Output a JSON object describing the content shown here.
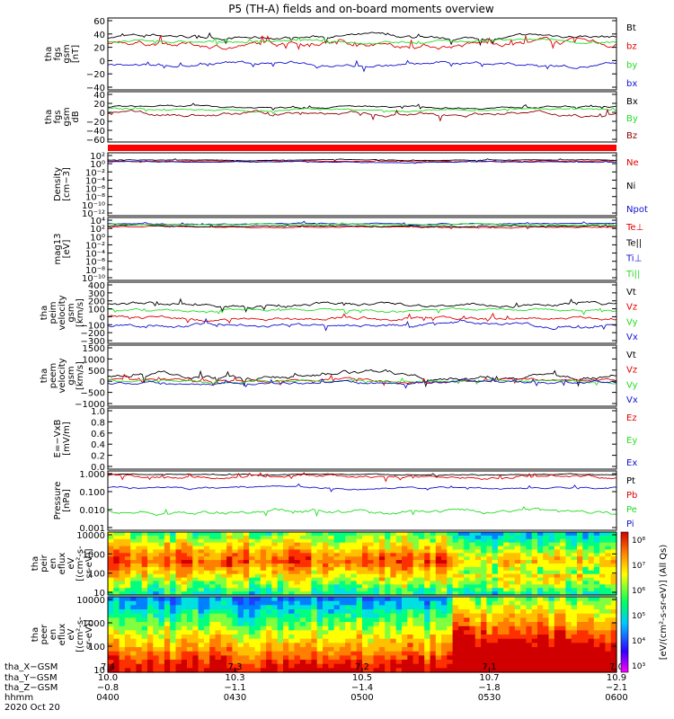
{
  "title": "P5 (TH-A) fields and on-board moments overview",
  "colors": {
    "black": "#000000",
    "red": "#e00000",
    "green": "#22dd22",
    "blue": "#1010d0",
    "darkred": "#900000",
    "redbar": "#ff0000"
  },
  "chart_data": [
    {
      "type": "line",
      "ylabel": [
        "tha",
        "fgs",
        "gsm",
        "[nT]"
      ],
      "yticks": [
        "60",
        "40",
        "20",
        "0",
        "−20",
        "−40"
      ],
      "ylim": [
        -40,
        60
      ],
      "series": [
        {
          "name": "Bt",
          "color": "#000000",
          "level": 35,
          "amp": 5
        },
        {
          "name": "bz",
          "color": "#e00000",
          "level": 25,
          "amp": 8
        },
        {
          "name": "by",
          "color": "#22dd22",
          "level": 28,
          "amp": 4
        },
        {
          "name": "bx",
          "color": "#1010d0",
          "level": -5,
          "amp": 5
        }
      ]
    },
    {
      "type": "line",
      "ylabel": [
        "tha",
        "fgs",
        "gsm",
        "dB"
      ],
      "yticks": [
        "40",
        "20",
        "0",
        "−20",
        "−40",
        "−60"
      ],
      "ylim": [
        -70,
        40
      ],
      "series": [
        {
          "name": "Bx",
          "color": "#000000",
          "level": 8,
          "amp": 4
        },
        {
          "name": "By",
          "color": "#22dd22",
          "level": 2,
          "amp": 4
        },
        {
          "name": "Bz",
          "color": "#900000",
          "level": -8,
          "amp": 8
        }
      ]
    },
    {
      "type": "bar",
      "note": "status bar",
      "color": "#ff0000"
    },
    {
      "type": "line",
      "log": true,
      "ylabel": [
        "Density",
        "[cm−3]"
      ],
      "yticks": [
        "10²",
        "10⁰",
        "10⁻²",
        "10⁻⁴",
        "10⁻⁶",
        "10⁻⁸",
        "10⁻¹⁰",
        "10⁻¹²"
      ],
      "ylim": [
        -13,
        3
      ],
      "series": [
        {
          "name": "Ne",
          "color": "#e00000",
          "level": 1.2,
          "amp": 0.2
        },
        {
          "name": "Ni",
          "color": "#000000",
          "level": 1.5,
          "amp": 0.2
        },
        {
          "name": "Npot",
          "color": "#1010d0",
          "level": 1.0,
          "amp": 0.2
        }
      ]
    },
    {
      "type": "line",
      "log": true,
      "ylabel": [
        "mag13",
        "[eV]"
      ],
      "yticks": [
        "10⁴",
        "10²",
        "10⁰",
        "10⁻²",
        "10⁻⁴",
        "10⁻⁶",
        "10⁻⁸",
        "10⁻¹⁰"
      ],
      "ylim": [
        -11,
        4.5
      ],
      "series": [
        {
          "name": "Te⊥",
          "color": "#e00000",
          "level": 2.5,
          "amp": 0.3
        },
        {
          "name": "Te||",
          "color": "#000000",
          "level": 2.7,
          "amp": 0.3
        },
        {
          "name": "Ti⊥",
          "color": "#1010d0",
          "level": 3.3,
          "amp": 0.3
        },
        {
          "name": "Ti||",
          "color": "#22dd22",
          "level": 3.2,
          "amp": 0.3
        }
      ]
    },
    {
      "type": "line",
      "ylabel": [
        "tha",
        "peim",
        "velocity",
        "gsm",
        "[km/s]"
      ],
      "yticks": [
        "400",
        "300",
        "200",
        "100",
        "0",
        "−100",
        "−200",
        "−300"
      ],
      "ylim": [
        -300,
        400
      ],
      "series": [
        {
          "name": "Vt",
          "color": "#000000",
          "level": 150,
          "amp": 40
        },
        {
          "name": "Vz",
          "color": "#e00000",
          "level": -20,
          "amp": 40
        },
        {
          "name": "Vy",
          "color": "#22dd22",
          "level": 80,
          "amp": 30
        },
        {
          "name": "Vx",
          "color": "#1010d0",
          "level": -100,
          "amp": 40
        }
      ]
    },
    {
      "type": "line",
      "ylabel": [
        "tha",
        "peem",
        "velocity",
        "gsm",
        "[km/s]"
      ],
      "yticks": [
        "1500",
        "1000",
        "500",
        "0",
        "−500",
        "−1000"
      ],
      "ylim": [
        -1000,
        1500
      ],
      "series": [
        {
          "name": "Vt",
          "color": "#000000",
          "level": 250,
          "amp": 200
        },
        {
          "name": "Vz",
          "color": "#e00000",
          "level": 50,
          "amp": 120
        },
        {
          "name": "Vy",
          "color": "#22dd22",
          "level": 0,
          "amp": 100
        },
        {
          "name": "Vx",
          "color": "#1010d0",
          "level": -50,
          "amp": 120
        }
      ]
    },
    {
      "type": "line",
      "ylabel": [
        "E=−VxB",
        "[mV/m]"
      ],
      "yticks": [
        "1.0",
        "0.8",
        "0.6",
        "0.4",
        "0.2",
        "0.0"
      ],
      "ylim": [
        0,
        1
      ],
      "series": [
        {
          "name": "Ez",
          "color": "#e00000"
        },
        {
          "name": "Ey",
          "color": "#22dd22"
        },
        {
          "name": "Ex",
          "color": "#1010d0"
        }
      ]
    },
    {
      "type": "line",
      "log": true,
      "ylabel": [
        "Pressure",
        "[nPa]"
      ],
      "yticks": [
        "1.000",
        "0.100",
        "0.010",
        "0.001"
      ],
      "ylim": [
        -3,
        0
      ],
      "series": [
        {
          "name": "Pt",
          "color": "#000000",
          "level": -0.1,
          "amp": 0.05
        },
        {
          "name": "Pb",
          "color": "#e00000",
          "level": -0.2,
          "amp": 0.15
        },
        {
          "name": "Pe",
          "color": "#22dd22",
          "level": -2.1,
          "amp": 0.2
        },
        {
          "name": "Pi",
          "color": "#1010d0",
          "level": -0.8,
          "amp": 0.1
        }
      ]
    },
    {
      "type": "heatmap",
      "ylabel": [
        "tha",
        "peir",
        "en",
        "eflux",
        "eV",
        "[(cm²-s-",
        "sr-eV)]"
      ],
      "yticks": [
        "10000",
        "1000",
        "100",
        "10"
      ]
    },
    {
      "type": "heatmap",
      "ylabel": [
        "tha",
        "peer",
        "en",
        "eflux",
        "eV",
        "[(cm²-s-",
        "sr-eV)]"
      ],
      "yticks": [
        "10000",
        "1000",
        "100",
        "10"
      ]
    }
  ],
  "colorbar": {
    "ticks": [
      "10⁸",
      "10⁷",
      "10⁶",
      "10⁵",
      "10⁴",
      "10³"
    ],
    "label": "[eV/(cm²-s-sr-eV)] (All Qs)"
  },
  "xaxis": {
    "row_labels": [
      "tha_X−GSM",
      "tha_Y−GSM",
      "tha_Z−GSM",
      "hhmm",
      "2020 Oct 20"
    ],
    "columns": [
      {
        "x": "7.4",
        "y": "10.0",
        "z": "−0.8",
        "hhmm": "0400"
      },
      {
        "x": "7.3",
        "y": "10.3",
        "z": "−1.1",
        "hhmm": "0430"
      },
      {
        "x": "7.2",
        "y": "10.5",
        "z": "−1.4",
        "hhmm": "0500"
      },
      {
        "x": "7.1",
        "y": "10.7",
        "z": "−1.8",
        "hhmm": "0530"
      },
      {
        "x": "7.0",
        "y": "10.9",
        "z": "−2.1",
        "hhmm": "0600"
      }
    ]
  }
}
